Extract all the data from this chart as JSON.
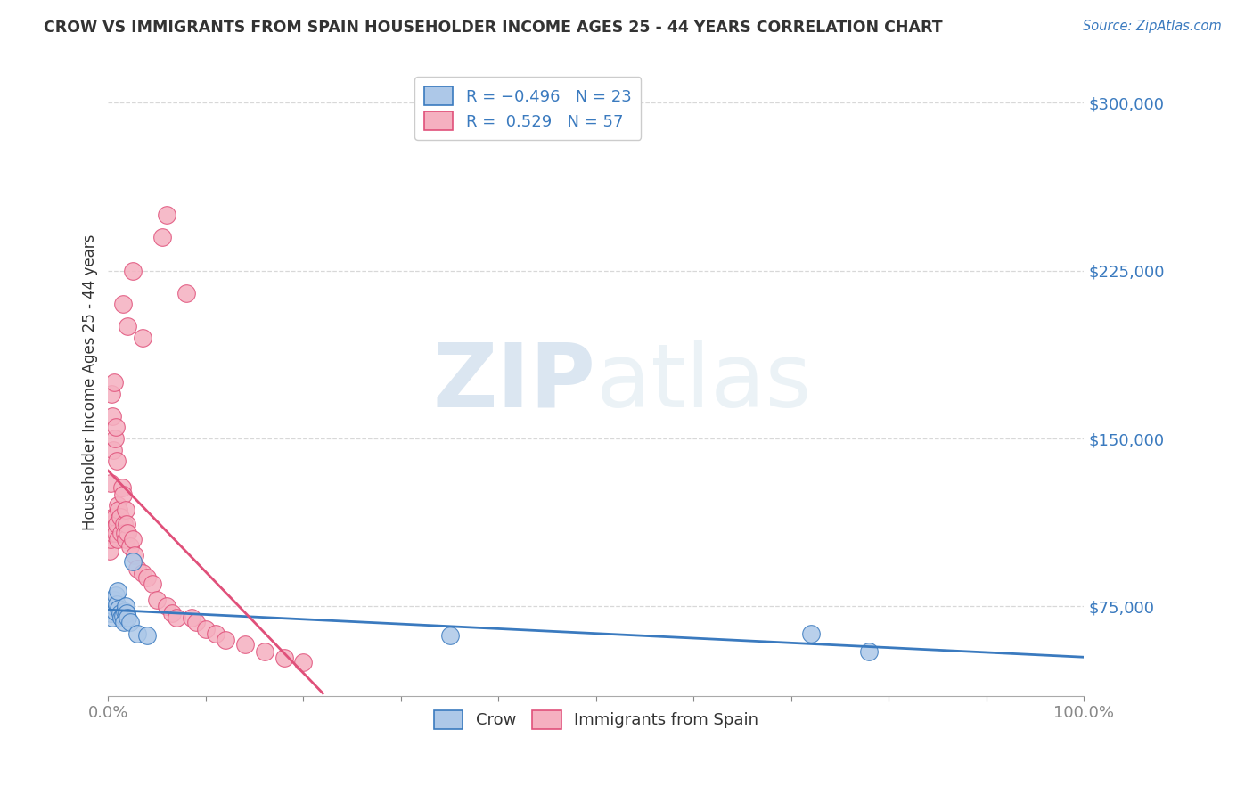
{
  "title": "CROW VS IMMIGRANTS FROM SPAIN HOUSEHOLDER INCOME AGES 25 - 44 YEARS CORRELATION CHART",
  "source": "Source: ZipAtlas.com",
  "ylabel": "Householder Income Ages 25 - 44 years",
  "xlim": [
    0.0,
    1.0
  ],
  "ylim": [
    35000,
    315000
  ],
  "yticks": [
    75000,
    150000,
    225000,
    300000
  ],
  "ytick_labels": [
    "$75,000",
    "$150,000",
    "$225,000",
    "$300,000"
  ],
  "xticks": [
    0.0,
    0.1,
    0.2,
    0.3,
    0.4,
    0.5,
    0.6,
    0.7,
    0.8,
    0.9,
    1.0
  ],
  "xtick_labels": [
    "0.0%",
    "",
    "",
    "",
    "",
    "",
    "",
    "",
    "",
    "",
    "100.0%"
  ],
  "blue_color": "#adc8e8",
  "pink_color": "#f5b0c0",
  "blue_line_color": "#3a7abf",
  "pink_line_color": "#e0507a",
  "watermark_zip": "ZIP",
  "watermark_atlas": "atlas",
  "background_color": "#ffffff",
  "grid_color": "#d8d8d8",
  "crow_x": [
    0.002,
    0.004,
    0.005,
    0.006,
    0.007,
    0.008,
    0.009,
    0.01,
    0.011,
    0.012,
    0.013,
    0.015,
    0.016,
    0.017,
    0.018,
    0.019,
    0.02,
    0.022,
    0.025,
    0.03,
    0.04,
    0.35,
    0.72,
    0.78
  ],
  "crow_y": [
    72000,
    70000,
    75000,
    78000,
    73000,
    80000,
    76000,
    82000,
    74000,
    72000,
    70000,
    71000,
    68000,
    73000,
    75000,
    72000,
    70000,
    68000,
    95000,
    63000,
    62000,
    62000,
    63000,
    55000
  ],
  "spain_x": [
    0.001,
    0.002,
    0.002,
    0.003,
    0.003,
    0.004,
    0.004,
    0.005,
    0.005,
    0.006,
    0.006,
    0.007,
    0.007,
    0.008,
    0.008,
    0.009,
    0.009,
    0.01,
    0.01,
    0.011,
    0.012,
    0.013,
    0.014,
    0.015,
    0.016,
    0.017,
    0.018,
    0.018,
    0.019,
    0.02,
    0.022,
    0.025,
    0.027,
    0.03,
    0.035,
    0.04,
    0.045,
    0.05,
    0.06,
    0.065,
    0.07,
    0.085,
    0.09,
    0.1,
    0.11,
    0.12,
    0.14,
    0.16,
    0.18,
    0.2,
    0.055,
    0.08,
    0.06,
    0.035,
    0.025,
    0.02,
    0.015
  ],
  "spain_y": [
    100000,
    130000,
    105000,
    170000,
    112000,
    160000,
    108000,
    145000,
    115000,
    175000,
    110000,
    150000,
    115000,
    155000,
    108000,
    140000,
    112000,
    120000,
    105000,
    118000,
    115000,
    108000,
    128000,
    125000,
    112000,
    108000,
    118000,
    105000,
    112000,
    108000,
    102000,
    105000,
    98000,
    92000,
    90000,
    88000,
    85000,
    78000,
    75000,
    72000,
    70000,
    70000,
    68000,
    65000,
    63000,
    60000,
    58000,
    55000,
    52000,
    50000,
    240000,
    215000,
    250000,
    195000,
    225000,
    200000,
    210000
  ]
}
